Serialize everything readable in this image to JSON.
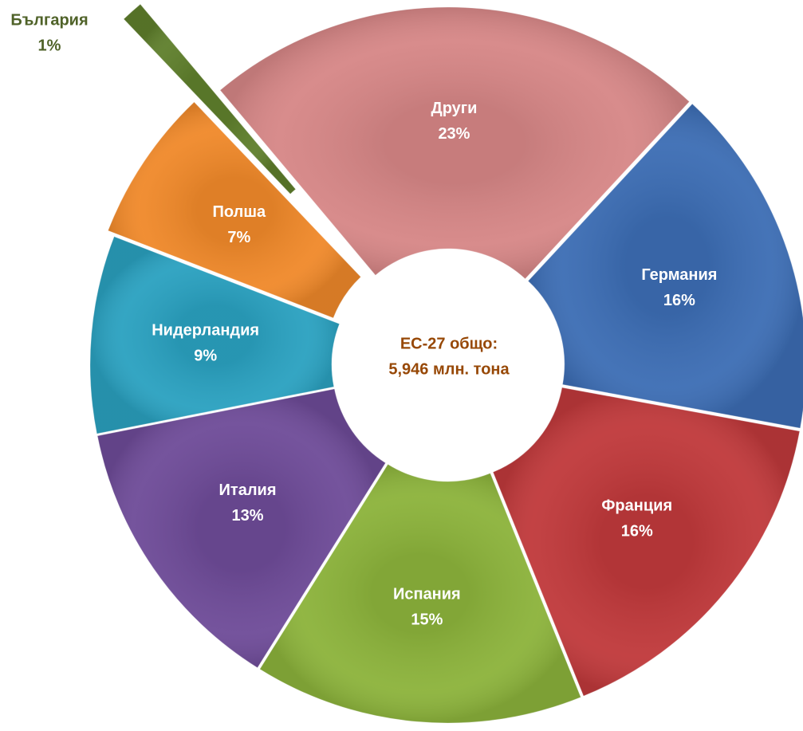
{
  "chart_data": {
    "type": "donut",
    "categories": [
      "Други",
      "Германия",
      "Франция",
      "Испания",
      "Италия",
      "Нидерландия",
      "Полша",
      "България"
    ],
    "values": [
      23,
      16,
      16,
      15,
      13,
      9,
      7,
      1
    ],
    "value_labels": [
      "23%",
      "16%",
      "16%",
      "15%",
      "13%",
      "9%",
      "7%",
      "1%"
    ],
    "colors": [
      "#d68686",
      "#3c6db4",
      "#c0393b",
      "#8cb33b",
      "#6e4b98",
      "#2aa1c0",
      "#f0892a",
      "#5f7f2c"
    ],
    "center_label": [
      "ЕС-27 общо:",
      "5,946 млн. тона"
    ]
  }
}
